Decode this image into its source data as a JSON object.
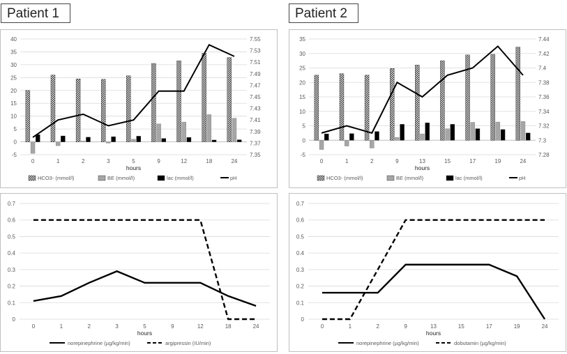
{
  "titles": {
    "patient1": "Patient 1",
    "patient2": "Patient 2"
  },
  "chart_data": [
    {
      "id": "p1-lab",
      "type": "bar",
      "categories": [
        "0",
        "1",
        "2",
        "3",
        "5",
        "9",
        "12",
        "18",
        "24"
      ],
      "xlabel": "hours",
      "ylim": [
        -5,
        40
      ],
      "yticks": [
        0,
        5,
        10,
        15,
        20,
        25,
        30,
        35,
        40
      ],
      "y2lim": [
        7.35,
        7.55
      ],
      "y2ticks": [
        "7.35",
        "7.37",
        "7.39",
        "7.41",
        "7.43",
        "7.45",
        "7.47",
        "7.49",
        "7.51",
        "7.53",
        "7.55"
      ],
      "series": [
        {
          "name": "HCO3- (mmol/l)",
          "kind": "bar",
          "style": "hatch",
          "values": [
            20,
            26,
            24.5,
            24.3,
            25.7,
            30.5,
            31.5,
            34.5,
            32.8
          ]
        },
        {
          "name": "BE (mmol/l)",
          "kind": "bar",
          "style": "gray",
          "values": [
            -4.5,
            -1.5,
            0.3,
            -0.5,
            1,
            7,
            7.7,
            10.6,
            9.2
          ]
        },
        {
          "name": "lac (mmol/l)",
          "kind": "bar",
          "style": "black",
          "values": [
            2.8,
            2.3,
            1.8,
            2,
            2.2,
            1.3,
            1.7,
            0.7,
            0.8
          ]
        },
        {
          "name": "pH",
          "kind": "line",
          "axis": "right",
          "values": [
            7.38,
            7.41,
            7.42,
            7.4,
            7.41,
            7.46,
            7.46,
            7.54,
            7.52
          ]
        }
      ]
    },
    {
      "id": "p2-lab",
      "type": "bar",
      "categories": [
        "0",
        "1",
        "2",
        "9",
        "13",
        "15",
        "17",
        "19",
        "24"
      ],
      "xlabel": "hours",
      "ylim": [
        -5,
        35
      ],
      "yticks": [
        0,
        5,
        10,
        15,
        20,
        25,
        30,
        35
      ],
      "y2lim": [
        7.28,
        7.44
      ],
      "y2ticks": [
        "7.28",
        "7.3",
        "7.32",
        "7.34",
        "7.36",
        "7.38",
        "7.4",
        "7.42",
        "7.44"
      ],
      "series": [
        {
          "name": "HCO3- (mmol/l)",
          "kind": "bar",
          "style": "hatch",
          "values": [
            22.5,
            23,
            22.5,
            24.8,
            26,
            27.5,
            29.5,
            29.7,
            32.2
          ]
        },
        {
          "name": "BE (mmol/l)",
          "kind": "bar",
          "style": "gray",
          "values": [
            -3.2,
            -2,
            -2.7,
            1,
            2.2,
            4,
            6.2,
            6.3,
            6.5
          ]
        },
        {
          "name": "lac (mmol/l)",
          "kind": "bar",
          "style": "black",
          "values": [
            2.2,
            2.3,
            3,
            5.5,
            6,
            5.5,
            4,
            3.7,
            2.5
          ]
        },
        {
          "name": "pH",
          "kind": "line",
          "axis": "right",
          "values": [
            7.31,
            7.32,
            7.31,
            7.38,
            7.36,
            7.39,
            7.4,
            7.43,
            7.39
          ]
        }
      ]
    },
    {
      "id": "p1-drug",
      "type": "line",
      "categories": [
        "0",
        "1",
        "2",
        "3",
        "5",
        "9",
        "12",
        "18",
        "24"
      ],
      "xlabel": "hours",
      "ylim": [
        0,
        0.7
      ],
      "yticks": [
        "0",
        "0.1",
        "0.2",
        "0.3",
        "0.4",
        "0.5",
        "0.6",
        "0.7"
      ],
      "series": [
        {
          "name": "norepinephrine (µg/kg/min)",
          "style": "solid",
          "values": [
            0.11,
            0.14,
            0.22,
            0.29,
            0.22,
            0.22,
            0.22,
            0.14,
            0.08
          ]
        },
        {
          "name": "argipressin (IU/min)",
          "style": "dashed",
          "values": [
            0.6,
            0.6,
            0.6,
            0.6,
            0.6,
            0.6,
            0.6,
            0,
            0
          ]
        }
      ]
    },
    {
      "id": "p2-drug",
      "type": "line",
      "categories": [
        "0",
        "1",
        "2",
        "9",
        "13",
        "15",
        "17",
        "19",
        "24"
      ],
      "xlabel": "hours",
      "ylim": [
        0,
        0.7
      ],
      "yticks": [
        "0",
        "0.1",
        "0.2",
        "0.3",
        "0.4",
        "0.5",
        "0.6",
        "0.7"
      ],
      "series": [
        {
          "name": "norepinephrine (µg/kg/min)",
          "style": "solid",
          "values": [
            0.16,
            0.16,
            0.16,
            0.33,
            0.33,
            0.33,
            0.33,
            0.26,
            0
          ]
        },
        {
          "name": "dobutamin (µg/kg/min)",
          "style": "dashed",
          "values": [
            0,
            0,
            0.3,
            0.6,
            0.6,
            0.6,
            0.6,
            0.6,
            0.6
          ]
        }
      ]
    }
  ]
}
